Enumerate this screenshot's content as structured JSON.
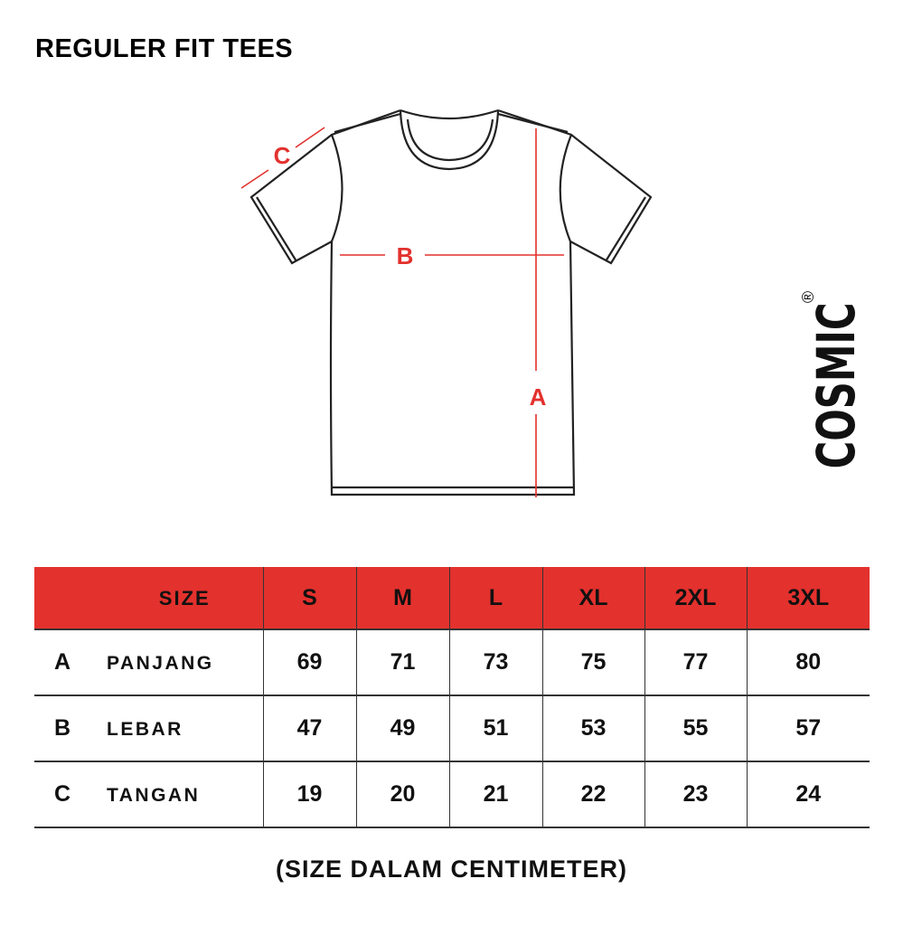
{
  "title": "REGULER FIT TEES",
  "diagram": {
    "labels": {
      "a": "A",
      "b": "B",
      "c": "C"
    },
    "accent_color": "#e3312d"
  },
  "brand": {
    "name": "COSMIC",
    "mark": "®"
  },
  "table": {
    "header_label": "SIZE",
    "sizes": [
      "S",
      "M",
      "L",
      "XL",
      "2XL",
      "3XL"
    ],
    "rows": [
      {
        "code": "A",
        "name": "PANJANG",
        "values": [
          "69",
          "71",
          "73",
          "75",
          "77",
          "80"
        ]
      },
      {
        "code": "B",
        "name": "LEBAR",
        "values": [
          "47",
          "49",
          "51",
          "53",
          "55",
          "57"
        ]
      },
      {
        "code": "C",
        "name": "TANGAN",
        "values": [
          "19",
          "20",
          "21",
          "22",
          "23",
          "24"
        ]
      }
    ],
    "header_color": "#e3312d"
  },
  "note": "(SIZE DALAM CENTIMETER)"
}
